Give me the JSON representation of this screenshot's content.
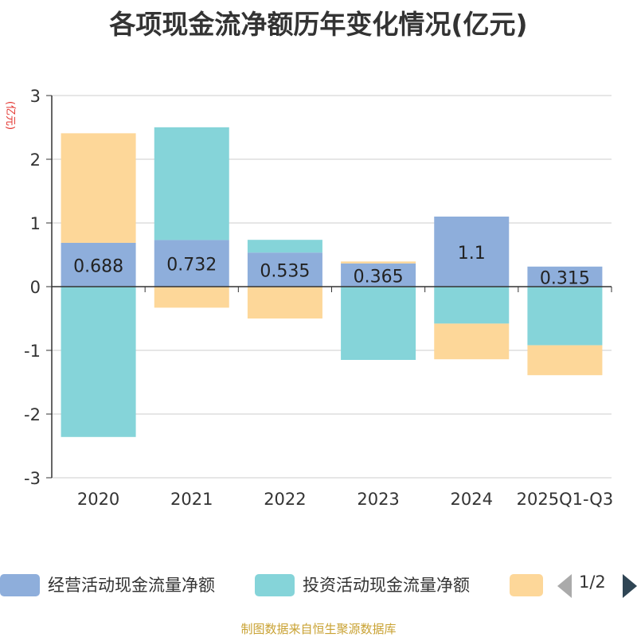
{
  "chart_data": {
    "type": "bar",
    "stacked": true,
    "title": "各项现金流净额历年变化情况(亿元)",
    "ylabel": "(亿元)",
    "ylim": [
      -3,
      3
    ],
    "yticks": [
      3,
      2,
      1,
      0,
      -1,
      -2,
      -3
    ],
    "categories": [
      "2020",
      "2021",
      "2022",
      "2023",
      "2024",
      "2025Q1-Q3"
    ],
    "series": [
      {
        "name": "经营活动现金流量净额",
        "color": "#8eaedb",
        "values": [
          0.688,
          0.732,
          0.535,
          0.365,
          1.1,
          0.315
        ],
        "labels": [
          "0.688",
          "0.732",
          "0.535",
          "0.365",
          "1.1",
          "0.315"
        ]
      },
      {
        "name": "投资活动现金流量净额",
        "color": "#85d4d9",
        "values": [
          -2.36,
          1.77,
          0.2,
          -1.15,
          -0.58,
          -0.92
        ]
      },
      {
        "name": "",
        "color": "#fdd799",
        "values": [
          1.72,
          -0.33,
          -0.5,
          0.03,
          -0.56,
          -0.47
        ]
      }
    ],
    "legend_page": "1/2",
    "source": "制图数据来自恒生聚源数据库"
  }
}
